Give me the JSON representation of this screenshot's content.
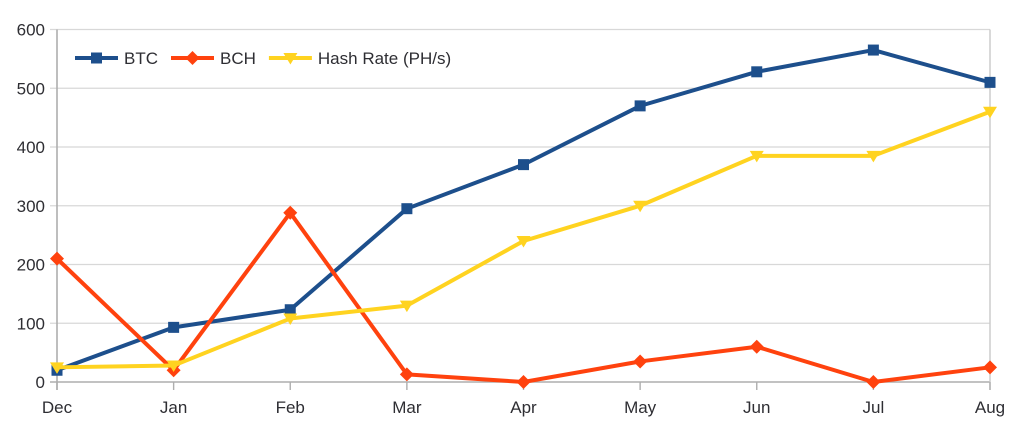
{
  "chart_data": {
    "type": "line",
    "title": "",
    "xlabel": "",
    "ylabel": "",
    "categories": [
      "Dec",
      "Jan",
      "Feb",
      "Mar",
      "Apr",
      "May",
      "Jun",
      "Jul",
      "Aug"
    ],
    "series": [
      {
        "name": "BTC",
        "marker": "square",
        "color": "#1D4F8C",
        "values": [
          20,
          93,
          123,
          295,
          370,
          470,
          528,
          565,
          510
        ]
      },
      {
        "name": "BCH",
        "marker": "diamond",
        "color": "#FF420E",
        "values": [
          210,
          20,
          288,
          13,
          0,
          35,
          60,
          0,
          25
        ]
      },
      {
        "name": "Hash Rate (PH/s)",
        "marker": "triangle-down",
        "color": "#FFD320",
        "values": [
          25,
          28,
          108,
          130,
          240,
          300,
          385,
          385,
          460
        ]
      }
    ],
    "ylim": [
      0,
      600
    ],
    "yticks": [
      0,
      100,
      200,
      300,
      400,
      500,
      600
    ],
    "grid": true,
    "legend_position": "top-left-inside"
  },
  "style": {
    "background_color": "#ffffff",
    "grid_color": "#d8d8d8",
    "axis_color": "#aeaeae",
    "wall_border_color": "#c9c9c9",
    "label_color": "#2e2e33",
    "line_width": 4,
    "font_size": 17
  }
}
